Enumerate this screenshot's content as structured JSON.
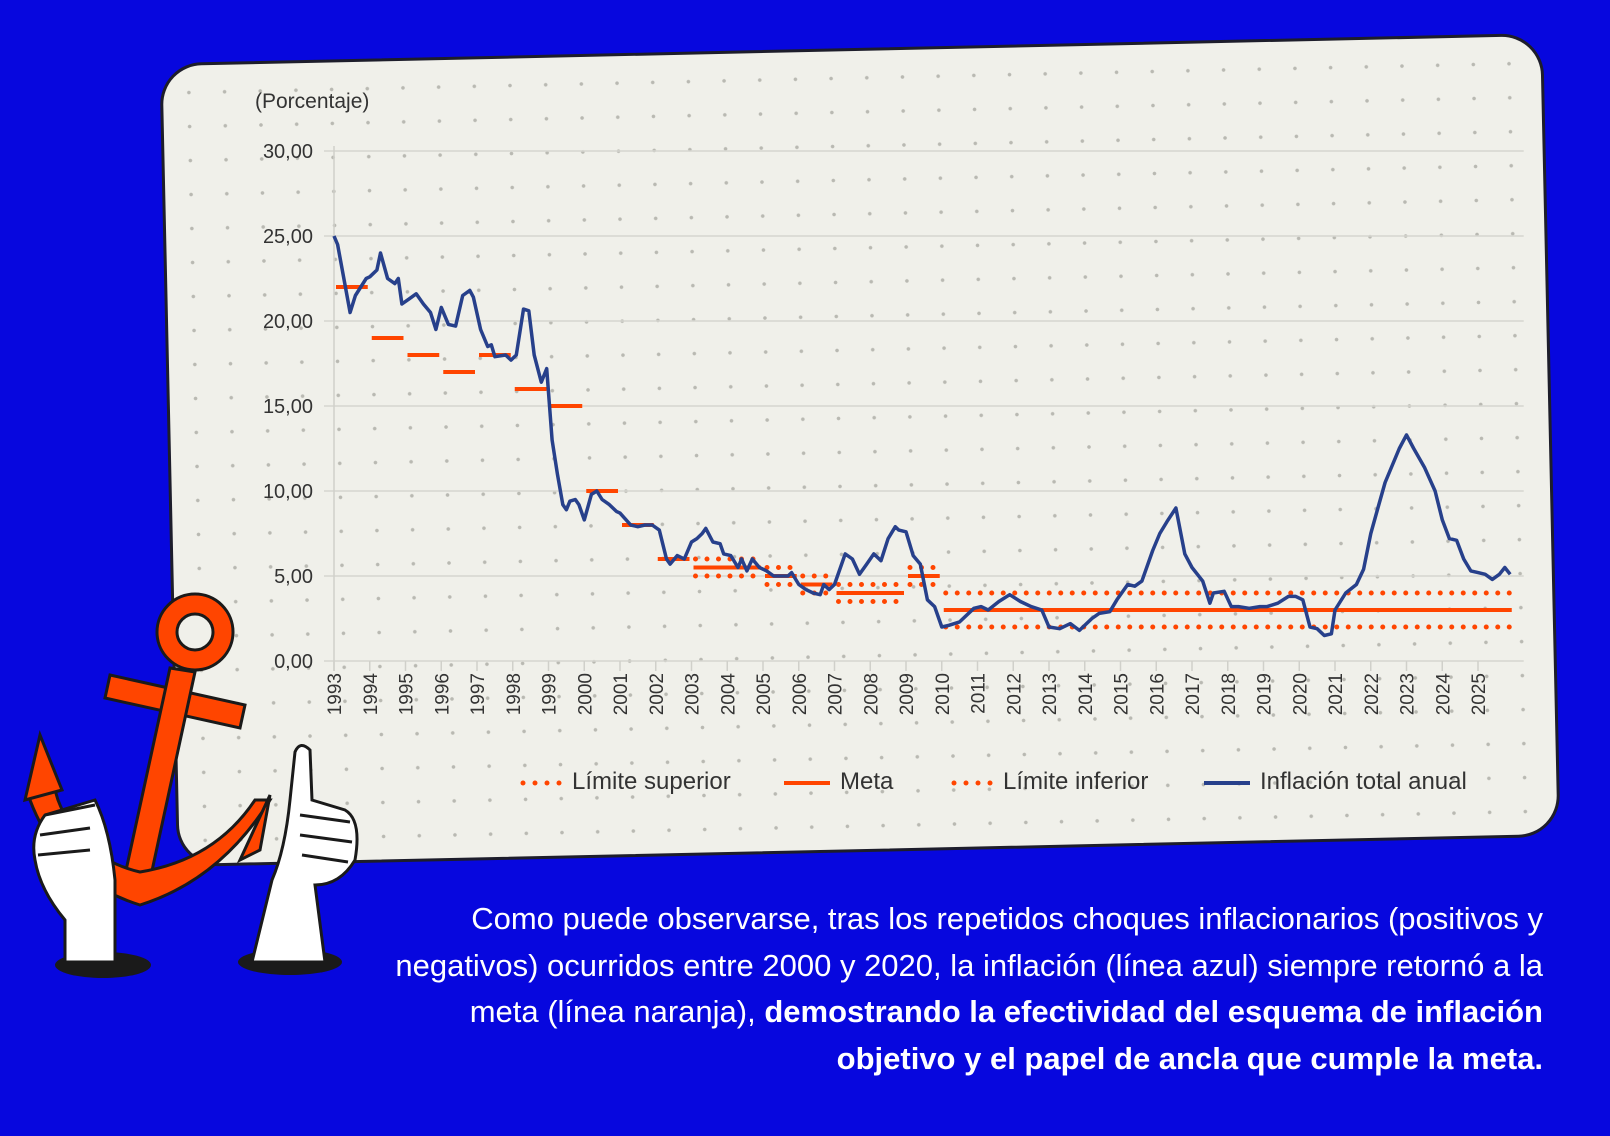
{
  "chart_data": {
    "type": "line",
    "unit_label": "(Porcentaje)",
    "ylim": [
      0,
      30
    ],
    "y_ticks": [
      0,
      5,
      10,
      15,
      20,
      25,
      30
    ],
    "y_tick_labels": [
      "0,00",
      "5,00",
      "10,00",
      "15,00",
      "20,00",
      "25,00",
      "30,00"
    ],
    "x_tick_labels": [
      "1993",
      "1994",
      "1995",
      "1996",
      "1997",
      "1998",
      "1999",
      "2000",
      "2001",
      "2002",
      "2003",
      "2004",
      "2005",
      "2006",
      "2007",
      "2008",
      "2009",
      "2010",
      "2011",
      "2012",
      "2013",
      "2014",
      "2015",
      "2016",
      "2017",
      "2018",
      "2019",
      "2020",
      "2021",
      "2022",
      "2023",
      "2024",
      "2025"
    ],
    "grid": "horizontal",
    "legend_position": "bottom",
    "colors": {
      "meta": "#FF4500",
      "limits": "#FF4500",
      "inflation": "#27408B"
    },
    "series": [
      {
        "name": "Límite superior",
        "style": "dotted",
        "segments": [
          [
            2003,
            2005,
            6
          ],
          [
            2005,
            2006,
            5.5
          ],
          [
            2006,
            2007,
            5
          ],
          [
            2007,
            2009,
            4.5
          ],
          [
            2009,
            2010,
            5.5
          ],
          [
            2010,
            2026,
            4
          ]
        ]
      },
      {
        "name": "Meta",
        "style": "solid",
        "segments": [
          [
            1993,
            1994,
            22
          ],
          [
            1994,
            1995,
            19
          ],
          [
            1995,
            1996,
            18
          ],
          [
            1996,
            1997,
            17
          ],
          [
            1997,
            1998,
            18
          ],
          [
            1998,
            1999,
            16
          ],
          [
            1999,
            2000,
            15
          ],
          [
            2000,
            2001,
            10
          ],
          [
            2001,
            2002,
            8
          ],
          [
            2002,
            2003,
            6
          ],
          [
            2003,
            2005,
            5.5
          ],
          [
            2005,
            2006,
            5
          ],
          [
            2006,
            2007,
            4.5
          ],
          [
            2007,
            2009,
            4
          ],
          [
            2009,
            2010,
            5
          ],
          [
            2010,
            2026,
            3
          ]
        ]
      },
      {
        "name": "Límite inferior",
        "style": "dotted",
        "segments": [
          [
            2003,
            2005,
            5
          ],
          [
            2005,
            2006,
            4.5
          ],
          [
            2006,
            2007,
            4
          ],
          [
            2007,
            2009,
            3.5
          ],
          [
            2009,
            2010,
            4.5
          ],
          [
            2010,
            2026,
            2
          ]
        ]
      },
      {
        "name": "Inflación total anual",
        "style": "solid",
        "points": [
          [
            1993.0,
            25.0
          ],
          [
            1993.1,
            24.5
          ],
          [
            1993.45,
            20.5
          ],
          [
            1993.6,
            21.5
          ],
          [
            1993.9,
            22.5
          ],
          [
            1994.0,
            22.6
          ],
          [
            1994.2,
            23.0
          ],
          [
            1994.3,
            24.0
          ],
          [
            1994.5,
            22.5
          ],
          [
            1994.7,
            22.2
          ],
          [
            1994.8,
            22.5
          ],
          [
            1994.9,
            21.0
          ],
          [
            1995.1,
            21.3
          ],
          [
            1995.3,
            21.6
          ],
          [
            1995.5,
            21.0
          ],
          [
            1995.7,
            20.5
          ],
          [
            1995.85,
            19.5
          ],
          [
            1996.0,
            20.8
          ],
          [
            1996.2,
            19.8
          ],
          [
            1996.4,
            19.7
          ],
          [
            1996.6,
            21.5
          ],
          [
            1996.8,
            21.8
          ],
          [
            1996.9,
            21.4
          ],
          [
            1997.1,
            19.5
          ],
          [
            1997.3,
            18.5
          ],
          [
            1997.4,
            18.6
          ],
          [
            1997.5,
            17.9
          ],
          [
            1997.8,
            18.0
          ],
          [
            1997.95,
            17.7
          ],
          [
            1998.1,
            18.0
          ],
          [
            1998.3,
            20.7
          ],
          [
            1998.45,
            20.6
          ],
          [
            1998.6,
            18.0
          ],
          [
            1998.8,
            16.4
          ],
          [
            1998.95,
            17.2
          ],
          [
            1999.1,
            13.0
          ],
          [
            1999.25,
            11.0
          ],
          [
            1999.4,
            9.2
          ],
          [
            1999.5,
            8.9
          ],
          [
            1999.6,
            9.4
          ],
          [
            1999.75,
            9.5
          ],
          [
            1999.85,
            9.2
          ],
          [
            2000.0,
            8.3
          ],
          [
            2000.2,
            9.8
          ],
          [
            2000.35,
            10.0
          ],
          [
            2000.5,
            9.5
          ],
          [
            2000.7,
            9.2
          ],
          [
            2000.9,
            8.8
          ],
          [
            2001.0,
            8.7
          ],
          [
            2001.3,
            8.0
          ],
          [
            2001.5,
            7.9
          ],
          [
            2001.7,
            8.0
          ],
          [
            2001.9,
            8.0
          ],
          [
            2002.1,
            7.7
          ],
          [
            2002.3,
            6.0
          ],
          [
            2002.4,
            5.7
          ],
          [
            2002.6,
            6.2
          ],
          [
            2002.8,
            6.0
          ],
          [
            2003.0,
            7.0
          ],
          [
            2003.15,
            7.2
          ],
          [
            2003.3,
            7.5
          ],
          [
            2003.4,
            7.8
          ],
          [
            2003.6,
            7.0
          ],
          [
            2003.8,
            6.9
          ],
          [
            2003.9,
            6.3
          ],
          [
            2004.1,
            6.2
          ],
          [
            2004.3,
            5.5
          ],
          [
            2004.4,
            6.0
          ],
          [
            2004.55,
            5.3
          ],
          [
            2004.7,
            6.0
          ],
          [
            2004.9,
            5.5
          ],
          [
            2005.1,
            5.3
          ],
          [
            2005.3,
            5.0
          ],
          [
            2005.5,
            5.0
          ],
          [
            2005.7,
            5.0
          ],
          [
            2005.8,
            5.2
          ],
          [
            2006.0,
            4.5
          ],
          [
            2006.2,
            4.2
          ],
          [
            2006.4,
            4.0
          ],
          [
            2006.6,
            3.9
          ],
          [
            2006.7,
            4.5
          ],
          [
            2006.85,
            4.2
          ],
          [
            2007.0,
            4.5
          ],
          [
            2007.3,
            6.3
          ],
          [
            2007.5,
            6.0
          ],
          [
            2007.7,
            5.1
          ],
          [
            2007.9,
            5.7
          ],
          [
            2008.1,
            6.3
          ],
          [
            2008.3,
            5.9
          ],
          [
            2008.5,
            7.2
          ],
          [
            2008.7,
            7.9
          ],
          [
            2008.8,
            7.7
          ],
          [
            2009.0,
            7.6
          ],
          [
            2009.2,
            6.2
          ],
          [
            2009.4,
            5.7
          ],
          [
            2009.6,
            3.6
          ],
          [
            2009.8,
            3.2
          ],
          [
            2010.0,
            2.0
          ],
          [
            2010.2,
            2.1
          ],
          [
            2010.5,
            2.3
          ],
          [
            2010.9,
            3.1
          ],
          [
            2011.1,
            3.2
          ],
          [
            2011.3,
            3.0
          ],
          [
            2011.6,
            3.5
          ],
          [
            2011.9,
            3.9
          ],
          [
            2012.2,
            3.5
          ],
          [
            2012.5,
            3.2
          ],
          [
            2012.8,
            3.0
          ],
          [
            2013.0,
            2.0
          ],
          [
            2013.3,
            1.9
          ],
          [
            2013.6,
            2.2
          ],
          [
            2013.85,
            1.8
          ],
          [
            2014.2,
            2.5
          ],
          [
            2014.4,
            2.8
          ],
          [
            2014.7,
            2.9
          ],
          [
            2014.9,
            3.6
          ],
          [
            2015.2,
            4.5
          ],
          [
            2015.4,
            4.4
          ],
          [
            2015.6,
            4.7
          ],
          [
            2015.9,
            6.5
          ],
          [
            2016.1,
            7.5
          ],
          [
            2016.3,
            8.2
          ],
          [
            2016.55,
            9.0
          ],
          [
            2016.8,
            6.3
          ],
          [
            2017.0,
            5.5
          ],
          [
            2017.3,
            4.7
          ],
          [
            2017.5,
            3.4
          ],
          [
            2017.6,
            4.0
          ],
          [
            2017.9,
            4.1
          ],
          [
            2018.1,
            3.2
          ],
          [
            2018.3,
            3.2
          ],
          [
            2018.6,
            3.1
          ],
          [
            2018.9,
            3.2
          ],
          [
            2019.1,
            3.2
          ],
          [
            2019.4,
            3.4
          ],
          [
            2019.7,
            3.8
          ],
          [
            2019.9,
            3.8
          ],
          [
            2020.1,
            3.6
          ],
          [
            2020.3,
            2.0
          ],
          [
            2020.5,
            1.9
          ],
          [
            2020.7,
            1.5
          ],
          [
            2020.9,
            1.6
          ],
          [
            2021.0,
            3.0
          ],
          [
            2021.3,
            4.0
          ],
          [
            2021.6,
            4.5
          ],
          [
            2021.8,
            5.4
          ],
          [
            2022.0,
            7.5
          ],
          [
            2022.2,
            9.0
          ],
          [
            2022.4,
            10.5
          ],
          [
            2022.6,
            11.5
          ],
          [
            2022.8,
            12.5
          ],
          [
            2023.0,
            13.3
          ],
          [
            2023.2,
            12.5
          ],
          [
            2023.5,
            11.4
          ],
          [
            2023.8,
            10.0
          ],
          [
            2024.0,
            8.3
          ],
          [
            2024.2,
            7.2
          ],
          [
            2024.4,
            7.1
          ],
          [
            2024.6,
            6.0
          ],
          [
            2024.8,
            5.3
          ],
          [
            2025.0,
            5.2
          ],
          [
            2025.2,
            5.1
          ],
          [
            2025.4,
            4.8
          ],
          [
            2025.6,
            5.1
          ],
          [
            2025.75,
            5.5
          ],
          [
            2025.9,
            5.1
          ]
        ]
      }
    ]
  },
  "legend": {
    "upper": "Límite superior",
    "meta": "Meta",
    "lower": "Límite inferior",
    "inflation": "Inflación total anual"
  },
  "caption": {
    "normal": "Como puede observarse, tras los repetidos choques inflacionarios (positivos y negativos) ocurridos entre 2000 y 2020, la inflación (línea azul) siempre retornó a la meta (línea naranja), ",
    "bold": "demostrando la efectividad del esquema de inflación objetivo y el papel de ancla que cumple la meta."
  },
  "illustration": {
    "icons": [
      "anchor-icon",
      "hand-holding-anchor-icon",
      "thumbs-up-icon"
    ]
  }
}
